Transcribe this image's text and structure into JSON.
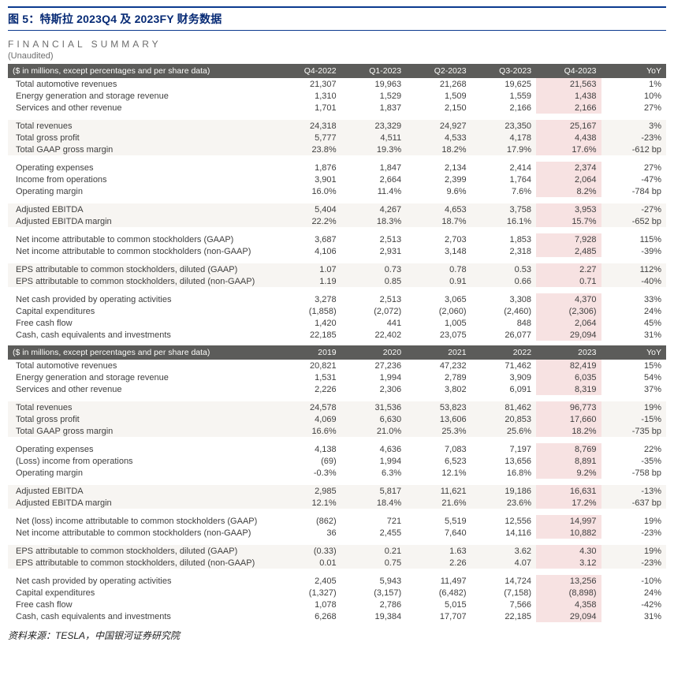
{
  "title": "图 5：特斯拉 2023Q4 及 2023FY 财务数据",
  "summary_heading": "FINANCIAL SUMMARY",
  "unaudited": "(Unaudited)",
  "source": "资料来源：TESLA，中国银河证券研究院",
  "colors": {
    "title_color": "#062a75",
    "title_border": "#0b3a8f",
    "header_bg": "#5c5c5a",
    "header_fg": "#fcfcfa",
    "row_alt_bg": "#f7f5f2",
    "highlight_bg": "#f7e2e2",
    "body_text": "#3f3f3f",
    "muted_text": "#6d6d6d"
  },
  "quarterly": {
    "header_label": "($ in millions, except percentages and per share data)",
    "columns": [
      "Q4-2022",
      "Q1-2023",
      "Q2-2023",
      "Q3-2023",
      "Q4-2023",
      "YoY"
    ],
    "highlight_col_index": 4,
    "groups": [
      {
        "alt": false,
        "rows": [
          {
            "label": "Total automotive revenues",
            "vals": [
              "21,307",
              "19,963",
              "21,268",
              "19,625",
              "21,563",
              "1%"
            ]
          },
          {
            "label": "Energy generation and storage revenue",
            "vals": [
              "1,310",
              "1,529",
              "1,509",
              "1,559",
              "1,438",
              "10%"
            ]
          },
          {
            "label": "Services and other revenue",
            "vals": [
              "1,701",
              "1,837",
              "2,150",
              "2,166",
              "2,166",
              "27%"
            ]
          }
        ]
      },
      {
        "alt": true,
        "rows": [
          {
            "label": "Total revenues",
            "vals": [
              "24,318",
              "23,329",
              "24,927",
              "23,350",
              "25,167",
              "3%"
            ]
          },
          {
            "label": "Total gross profit",
            "vals": [
              "5,777",
              "4,511",
              "4,533",
              "4,178",
              "4,438",
              "-23%"
            ]
          },
          {
            "label": "Total GAAP gross margin",
            "vals": [
              "23.8%",
              "19.3%",
              "18.2%",
              "17.9%",
              "17.6%",
              "-612 bp"
            ]
          }
        ]
      },
      {
        "alt": false,
        "rows": [
          {
            "label": "Operating expenses",
            "vals": [
              "1,876",
              "1,847",
              "2,134",
              "2,414",
              "2,374",
              "27%"
            ]
          },
          {
            "label": "Income from operations",
            "vals": [
              "3,901",
              "2,664",
              "2,399",
              "1,764",
              "2,064",
              "-47%"
            ]
          },
          {
            "label": "Operating margin",
            "vals": [
              "16.0%",
              "11.4%",
              "9.6%",
              "7.6%",
              "8.2%",
              "-784 bp"
            ]
          }
        ]
      },
      {
        "alt": true,
        "rows": [
          {
            "label": "Adjusted EBITDA",
            "vals": [
              "5,404",
              "4,267",
              "4,653",
              "3,758",
              "3,953",
              "-27%"
            ]
          },
          {
            "label": "Adjusted EBITDA margin",
            "vals": [
              "22.2%",
              "18.3%",
              "18.7%",
              "16.1%",
              "15.7%",
              "-652 bp"
            ]
          }
        ]
      },
      {
        "alt": false,
        "rows": [
          {
            "label": "Net income attributable to common stockholders (GAAP)",
            "vals": [
              "3,687",
              "2,513",
              "2,703",
              "1,853",
              "7,928",
              "115%"
            ]
          },
          {
            "label": "Net income attributable to common stockholders (non-GAAP)",
            "vals": [
              "4,106",
              "2,931",
              "3,148",
              "2,318",
              "2,485",
              "-39%"
            ]
          }
        ]
      },
      {
        "alt": true,
        "rows": [
          {
            "label": "EPS attributable to common stockholders, diluted (GAAP)",
            "vals": [
              "1.07",
              "0.73",
              "0.78",
              "0.53",
              "2.27",
              "112%"
            ]
          },
          {
            "label": "EPS attributable to common stockholders, diluted (non-GAAP)",
            "vals": [
              "1.19",
              "0.85",
              "0.91",
              "0.66",
              "0.71",
              "-40%"
            ]
          }
        ]
      },
      {
        "alt": false,
        "rows": [
          {
            "label": "Net cash provided by operating activities",
            "vals": [
              "3,278",
              "2,513",
              "3,065",
              "3,308",
              "4,370",
              "33%"
            ]
          },
          {
            "label": "Capital expenditures",
            "vals": [
              "(1,858)",
              "(2,072)",
              "(2,060)",
              "(2,460)",
              "(2,306)",
              "24%"
            ]
          },
          {
            "label": "Free cash flow",
            "vals": [
              "1,420",
              "441",
              "1,005",
              "848",
              "2,064",
              "45%"
            ]
          },
          {
            "label": "Cash, cash equivalents and investments",
            "vals": [
              "22,185",
              "22,402",
              "23,075",
              "26,077",
              "29,094",
              "31%"
            ]
          }
        ]
      }
    ]
  },
  "annual": {
    "header_label": "($ in millions, except percentages and per share data)",
    "columns": [
      "2019",
      "2020",
      "2021",
      "2022",
      "2023",
      "YoY"
    ],
    "highlight_col_index": 4,
    "groups": [
      {
        "alt": false,
        "rows": [
          {
            "label": "Total automotive revenues",
            "vals": [
              "20,821",
              "27,236",
              "47,232",
              "71,462",
              "82,419",
              "15%"
            ]
          },
          {
            "label": "Energy generation and storage revenue",
            "vals": [
              "1,531",
              "1,994",
              "2,789",
              "3,909",
              "6,035",
              "54%"
            ]
          },
          {
            "label": "Services and other revenue",
            "vals": [
              "2,226",
              "2,306",
              "3,802",
              "6,091",
              "8,319",
              "37%"
            ]
          }
        ]
      },
      {
        "alt": true,
        "rows": [
          {
            "label": "Total revenues",
            "vals": [
              "24,578",
              "31,536",
              "53,823",
              "81,462",
              "96,773",
              "19%"
            ]
          },
          {
            "label": "Total gross profit",
            "vals": [
              "4,069",
              "6,630",
              "13,606",
              "20,853",
              "17,660",
              "-15%"
            ]
          },
          {
            "label": "Total GAAP gross margin",
            "vals": [
              "16.6%",
              "21.0%",
              "25.3%",
              "25.6%",
              "18.2%",
              "-735 bp"
            ]
          }
        ]
      },
      {
        "alt": false,
        "rows": [
          {
            "label": "Operating expenses",
            "vals": [
              "4,138",
              "4,636",
              "7,083",
              "7,197",
              "8,769",
              "22%"
            ]
          },
          {
            "label": "(Loss) income from operations",
            "vals": [
              "(69)",
              "1,994",
              "6,523",
              "13,656",
              "8,891",
              "-35%"
            ]
          },
          {
            "label": "Operating margin",
            "vals": [
              "-0.3%",
              "6.3%",
              "12.1%",
              "16.8%",
              "9.2%",
              "-758 bp"
            ]
          }
        ]
      },
      {
        "alt": true,
        "rows": [
          {
            "label": "Adjusted EBITDA",
            "vals": [
              "2,985",
              "5,817",
              "11,621",
              "19,186",
              "16,631",
              "-13%"
            ]
          },
          {
            "label": "Adjusted EBITDA margin",
            "vals": [
              "12.1%",
              "18.4%",
              "21.6%",
              "23.6%",
              "17.2%",
              "-637 bp"
            ]
          }
        ]
      },
      {
        "alt": false,
        "rows": [
          {
            "label": "Net (loss) income attributable to common stockholders (GAAP)",
            "vals": [
              "(862)",
              "721",
              "5,519",
              "12,556",
              "14,997",
              "19%"
            ]
          },
          {
            "label": "Net income attributable to common stockholders (non-GAAP)",
            "vals": [
              "36",
              "2,455",
              "7,640",
              "14,116",
              "10,882",
              "-23%"
            ]
          }
        ]
      },
      {
        "alt": true,
        "rows": [
          {
            "label": "EPS attributable to common stockholders, diluted (GAAP)",
            "vals": [
              "(0.33)",
              "0.21",
              "1.63",
              "3.62",
              "4.30",
              "19%"
            ]
          },
          {
            "label": "EPS attributable to common stockholders, diluted (non-GAAP)",
            "vals": [
              "0.01",
              "0.75",
              "2.26",
              "4.07",
              "3.12",
              "-23%"
            ]
          }
        ]
      },
      {
        "alt": false,
        "rows": [
          {
            "label": "Net cash provided by operating activities",
            "vals": [
              "2,405",
              "5,943",
              "11,497",
              "14,724",
              "13,256",
              "-10%"
            ]
          },
          {
            "label": "Capital expenditures",
            "vals": [
              "(1,327)",
              "(3,157)",
              "(6,482)",
              "(7,158)",
              "(8,898)",
              "24%"
            ]
          },
          {
            "label": "Free cash flow",
            "vals": [
              "1,078",
              "2,786",
              "5,015",
              "7,566",
              "4,358",
              "-42%"
            ]
          },
          {
            "label": "Cash, cash equivalents and investments",
            "vals": [
              "6,268",
              "19,384",
              "17,707",
              "22,185",
              "29,094",
              "31%"
            ]
          }
        ]
      }
    ]
  }
}
